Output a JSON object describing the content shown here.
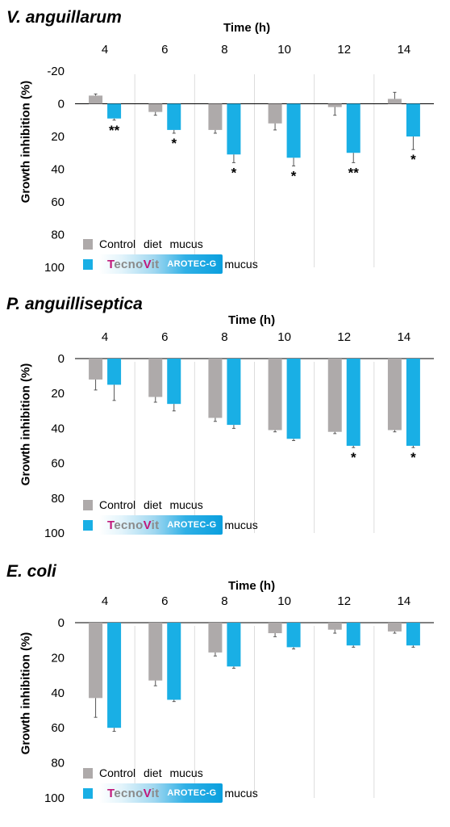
{
  "colors": {
    "control": "#aeaaaa",
    "tecnovit": "#19afe5",
    "grid": "#dcdcdc",
    "axis": "#000000"
  },
  "common": {
    "xlabel": "Time (h)",
    "ylabel": "Growth inhibition (%)",
    "legend_control": "Control  diet  mucus",
    "legend_mucus": "mucus",
    "brand_t": "T",
    "brand_mid": "ecno",
    "brand_v": "V",
    "brand_end": "it",
    "brand_product": "AROTEC-G"
  },
  "chart_data": [
    {
      "type": "bar",
      "title": "V. anguillarum",
      "xlabel": "Time (h)",
      "ylabel": "Growth inhibition (%)",
      "categories": [
        "4",
        "6",
        "8",
        "10",
        "12",
        "14"
      ],
      "y_inverted": true,
      "ylim": [
        -20,
        100
      ],
      "yticks": [
        -20,
        0,
        20,
        40,
        60,
        80,
        100
      ],
      "series": [
        {
          "name": "Control diet mucus",
          "color": "#aeaaaa",
          "values": [
            -5,
            5,
            16,
            12,
            2,
            -3
          ],
          "errors": [
            1,
            2,
            2,
            4,
            5,
            4
          ]
        },
        {
          "name": "TecnoVit AROTEC-G mucus",
          "color": "#19afe5",
          "values": [
            9,
            16,
            31,
            33,
            30,
            20
          ],
          "errors": [
            1,
            2,
            5,
            5,
            6,
            8
          ]
        }
      ],
      "annotations": [
        "**",
        "*",
        "*",
        "*",
        "**",
        "*"
      ],
      "legend": "bottom-left"
    },
    {
      "type": "bar",
      "title": "P. anguilliseptica",
      "xlabel": "Time (h)",
      "ylabel": "Growth inhibition (%)",
      "categories": [
        "4",
        "6",
        "8",
        "10",
        "12",
        "14"
      ],
      "y_inverted": true,
      "ylim": [
        0,
        100
      ],
      "yticks": [
        0,
        20,
        40,
        60,
        80,
        100
      ],
      "series": [
        {
          "name": "Control diet mucus",
          "color": "#aeaaaa",
          "values": [
            12,
            22,
            34,
            41,
            42,
            41
          ],
          "errors": [
            6,
            3,
            2,
            1,
            1,
            1
          ]
        },
        {
          "name": "TecnoVit AROTEC-G mucus",
          "color": "#19afe5",
          "values": [
            15,
            26,
            38,
            46,
            50,
            50
          ],
          "errors": [
            9,
            4,
            2,
            1,
            1,
            1
          ]
        }
      ],
      "annotations": [
        "",
        "",
        "",
        "",
        "*",
        "*"
      ],
      "legend": "bottom-left"
    },
    {
      "type": "bar",
      "title": "E. coli",
      "xlabel": "Time (h)",
      "ylabel": "Growth inhibition (%)",
      "categories": [
        "4",
        "6",
        "8",
        "10",
        "12",
        "14"
      ],
      "y_inverted": true,
      "ylim": [
        0,
        100
      ],
      "yticks": [
        0,
        20,
        40,
        60,
        80,
        100
      ],
      "series": [
        {
          "name": "Control diet mucus",
          "color": "#aeaaaa",
          "values": [
            43,
            33,
            17,
            6,
            4,
            5
          ],
          "errors": [
            11,
            3,
            2,
            2,
            2,
            1
          ]
        },
        {
          "name": "TecnoVit AROTEC-G mucus",
          "color": "#19afe5",
          "values": [
            60,
            44,
            25,
            14,
            13,
            13
          ],
          "errors": [
            2,
            1,
            1,
            1,
            1,
            1
          ]
        }
      ],
      "annotations": [
        "",
        "",
        "",
        "",
        "",
        ""
      ],
      "legend": "bottom-left"
    }
  ]
}
